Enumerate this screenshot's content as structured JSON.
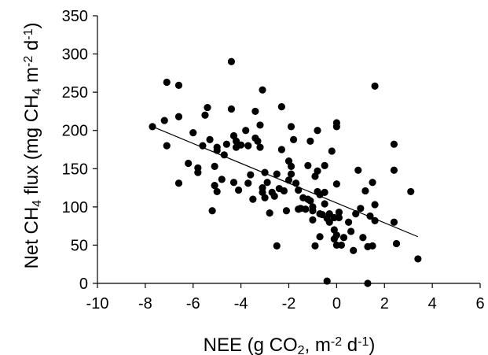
{
  "chart_data": {
    "type": "scatter",
    "title": "",
    "xlabel": {
      "parts": [
        {
          "text": "NEE (g CO"
        },
        {
          "text": "2",
          "sub": true
        },
        {
          "text": ", m"
        },
        {
          "text": "-2",
          "sup": true
        },
        {
          "text": " d"
        },
        {
          "text": "-1",
          "sup": true
        },
        {
          "text": ")"
        }
      ]
    },
    "ylabel": {
      "parts": [
        {
          "text": "Net CH"
        },
        {
          "text": "4",
          "sub": true
        },
        {
          "text": " flux (mg CH"
        },
        {
          "text": "4",
          "sub": true
        },
        {
          "text": " m"
        },
        {
          "text": "-2",
          "sup": true
        },
        {
          "text": " d"
        },
        {
          "text": "-1",
          "sup": true
        },
        {
          "text": ")"
        }
      ]
    },
    "xlim": [
      -10,
      6
    ],
    "ylim": [
      0,
      350
    ],
    "xticks": [
      "-10",
      "-8",
      "-6",
      "-4",
      "-2",
      "0",
      "2",
      "4",
      "6"
    ],
    "yticks": [
      "0",
      "50",
      "100",
      "150",
      "200",
      "250",
      "300",
      "350"
    ],
    "grid": false,
    "legend": "none",
    "trendline": {
      "x": [
        -7.7,
        3.4
      ],
      "y": [
        205,
        61
      ]
    },
    "points": [
      [
        -7.7,
        205
      ],
      [
        -7.2,
        213
      ],
      [
        -7.1,
        263
      ],
      [
        -7.1,
        180
      ],
      [
        -6.6,
        259
      ],
      [
        -6.6,
        218
      ],
      [
        -6.6,
        131
      ],
      [
        -6.2,
        157
      ],
      [
        -6.0,
        197
      ],
      [
        -5.8,
        151
      ],
      [
        -5.8,
        145
      ],
      [
        -5.6,
        180
      ],
      [
        -5.5,
        220
      ],
      [
        -5.4,
        230
      ],
      [
        -5.3,
        188
      ],
      [
        -5.2,
        95
      ],
      [
        -5.1,
        128
      ],
      [
        -5.1,
        153
      ],
      [
        -5.0,
        178
      ],
      [
        -5.0,
        174
      ],
      [
        -5.0,
        120
      ],
      [
        -4.8,
        136
      ],
      [
        -4.7,
        168
      ],
      [
        -4.6,
        182
      ],
      [
        -4.4,
        290
      ],
      [
        -4.4,
        228
      ],
      [
        -4.3,
        193
      ],
      [
        -4.3,
        132
      ],
      [
        -4.2,
        186
      ],
      [
        -4.2,
        178
      ],
      [
        -4.1,
        122
      ],
      [
        -4.0,
        181
      ],
      [
        -3.8,
        200
      ],
      [
        -3.7,
        180
      ],
      [
        -3.7,
        131
      ],
      [
        -3.6,
        142
      ],
      [
        -3.5,
        110
      ],
      [
        -3.4,
        190
      ],
      [
        -3.4,
        225
      ],
      [
        -3.3,
        186
      ],
      [
        -3.2,
        207
      ],
      [
        -3.2,
        178
      ],
      [
        -3.1,
        253
      ],
      [
        -3.1,
        125
      ],
      [
        -3.1,
        119
      ],
      [
        -3.0,
        145
      ],
      [
        -3.0,
        112
      ],
      [
        -2.9,
        132
      ],
      [
        -2.8,
        92
      ],
      [
        -2.7,
        119
      ],
      [
        -2.6,
        114
      ],
      [
        -2.5,
        143
      ],
      [
        -2.5,
        49
      ],
      [
        -2.4,
        124
      ],
      [
        -2.3,
        175
      ],
      [
        -2.3,
        231
      ],
      [
        -2.2,
        121
      ],
      [
        -2.1,
        95
      ],
      [
        -2.0,
        135
      ],
      [
        -2.0,
        160
      ],
      [
        -1.9,
        205
      ],
      [
        -1.9,
        153
      ],
      [
        -1.9,
        143
      ],
      [
        -1.8,
        188
      ],
      [
        -1.7,
        131
      ],
      [
        -1.6,
        97
      ],
      [
        -1.6,
        122
      ],
      [
        -1.5,
        98
      ],
      [
        -1.4,
        112
      ],
      [
        -1.3,
        97
      ],
      [
        -1.2,
        154
      ],
      [
        -1.2,
        110
      ],
      [
        -1.1,
        186
      ],
      [
        -1.1,
        108
      ],
      [
        -1.0,
        100
      ],
      [
        -1.0,
        95
      ],
      [
        -1.0,
        83
      ],
      [
        -0.9,
        140
      ],
      [
        -0.9,
        49
      ],
      [
        -0.8,
        120
      ],
      [
        -0.8,
        200
      ],
      [
        -0.8,
        147
      ],
      [
        -0.7,
        91
      ],
      [
        -0.7,
        61
      ],
      [
        -0.7,
        116
      ],
      [
        -0.6,
        90
      ],
      [
        -0.5,
        104
      ],
      [
        -0.5,
        154
      ],
      [
        -0.5,
        119
      ],
      [
        -0.4,
        85
      ],
      [
        -0.4,
        3
      ],
      [
        -0.3,
        91
      ],
      [
        -0.3,
        80
      ],
      [
        -0.2,
        173
      ],
      [
        -0.1,
        86
      ],
      [
        -0.1,
        70
      ],
      [
        -0.1,
        58
      ],
      [
        0.0,
        205
      ],
      [
        0.0,
        210
      ],
      [
        0.0,
        130
      ],
      [
        0.0,
        63
      ],
      [
        0.0,
        50
      ],
      [
        0.1,
        93
      ],
      [
        0.1,
        86
      ],
      [
        0.2,
        50
      ],
      [
        0.3,
        60
      ],
      [
        0.5,
        80
      ],
      [
        0.6,
        68
      ],
      [
        0.7,
        43
      ],
      [
        0.8,
        91
      ],
      [
        0.9,
        148
      ],
      [
        1.0,
        98
      ],
      [
        1.1,
        60
      ],
      [
        1.2,
        121
      ],
      [
        1.3,
        48
      ],
      [
        1.3,
        0
      ],
      [
        1.4,
        88
      ],
      [
        1.5,
        49
      ],
      [
        1.6,
        258
      ],
      [
        1.6,
        103
      ],
      [
        1.6,
        82
      ],
      [
        1.5,
        132
      ],
      [
        2.4,
        182
      ],
      [
        2.4,
        148
      ],
      [
        2.4,
        80
      ],
      [
        2.5,
        52
      ],
      [
        3.1,
        120
      ],
      [
        3.4,
        32
      ]
    ]
  }
}
